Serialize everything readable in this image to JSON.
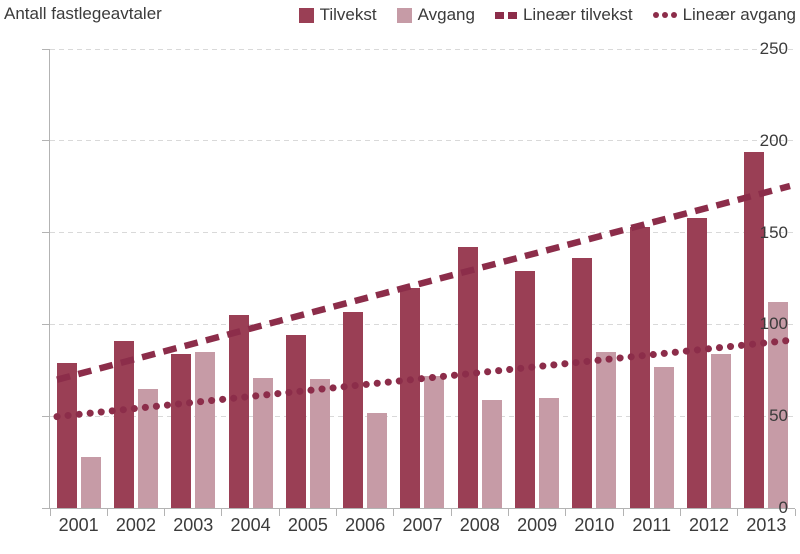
{
  "chart_data": {
    "type": "bar",
    "title": "Antall fastlegeavtaler",
    "categories": [
      "2001",
      "2002",
      "2003",
      "2004",
      "2005",
      "2006",
      "2007",
      "2008",
      "2009",
      "2010",
      "2011",
      "2012",
      "2013"
    ],
    "series": [
      {
        "name": "Tilvekst",
        "color": "#9a3f55",
        "values": [
          79,
          91,
          84,
          105,
          94,
          107,
          120,
          142,
          129,
          136,
          153,
          158,
          194
        ]
      },
      {
        "name": "Avgang",
        "color": "#c69ba6",
        "values": [
          28,
          65,
          85,
          71,
          70,
          52,
          72,
          59,
          60,
          85,
          77,
          84,
          112
        ]
      }
    ],
    "trendlines": [
      {
        "name": "Lineær tilvekst",
        "style": "dashed",
        "color": "#8c2d4a",
        "start_value": 73,
        "end_value": 172
      },
      {
        "name": "Lineær avgang",
        "style": "dotted",
        "color": "#8c2d4a",
        "start_value": 51,
        "end_value": 90
      }
    ],
    "ylabel": "Antall fastlegeavtaler",
    "ylim": [
      0,
      250
    ],
    "yticks": [
      0,
      50,
      100,
      150,
      200,
      250
    ],
    "grid": "horizontal-dashed",
    "legend_position": "top-right",
    "colors": {
      "grid": "#d9d9d9",
      "axis": "#b3b3b3",
      "text": "#3b3b3b",
      "background": "#ffffff"
    }
  }
}
